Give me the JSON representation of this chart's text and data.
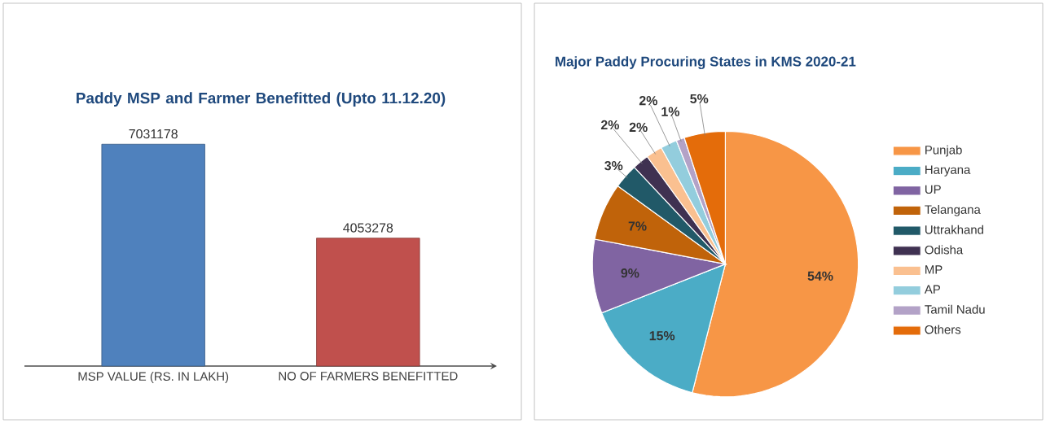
{
  "chart_data": [
    {
      "type": "bar",
      "title": "Paddy MSP and Farmer Benefitted  (Upto 11.12.20)",
      "categories": [
        "MSP VALUE (RS. IN LAKH)",
        "NO OF FARMERS BENEFITTED"
      ],
      "values": [
        7031178,
        4053278
      ],
      "colors": [
        "#4f81bd",
        "#c0504d"
      ],
      "data_labels": true
    },
    {
      "type": "pie",
      "title": "Major Paddy Procuring States in KMS 2020-21",
      "categories": [
        "Punjab",
        "Haryana",
        "UP",
        "Telangana",
        "Uttrakhand",
        "Odisha",
        "MP",
        "AP",
        "Tamil Nadu",
        "Others"
      ],
      "values": [
        54,
        15,
        9,
        7,
        3,
        2,
        2,
        2,
        1,
        5
      ],
      "value_labels": [
        "54%",
        "15%",
        "9%",
        "7%",
        "3%",
        "2%",
        "2%",
        "2%",
        "1%",
        "5%"
      ],
      "colors": [
        "#f79646",
        "#4bacc6",
        "#8064a2",
        "#c0630a",
        "#215968",
        "#3f3151",
        "#fac090",
        "#93cddd",
        "#b3a2c7",
        "#e46c0a"
      ],
      "legend": "right"
    }
  ]
}
